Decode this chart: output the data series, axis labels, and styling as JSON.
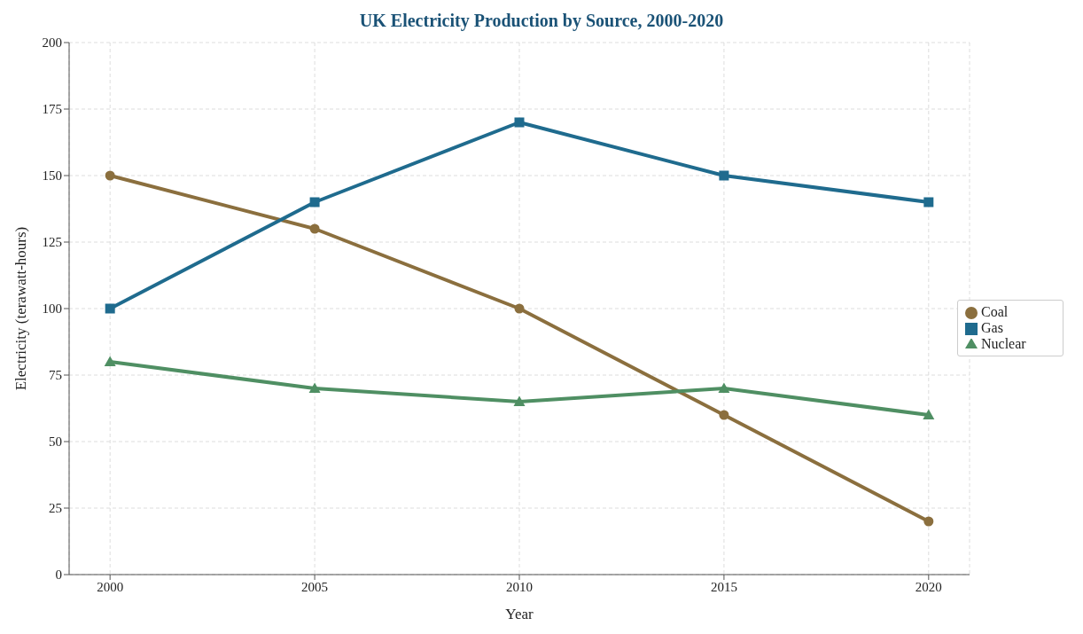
{
  "chart_data": {
    "type": "line",
    "title": "UK Electricity Production by Source, 2000-2020",
    "xlabel": "Year",
    "ylabel": "Electricity (terawatt-hours)",
    "x": [
      2000,
      2005,
      2010,
      2015,
      2020
    ],
    "series": [
      {
        "name": "Coal",
        "color": "#8b6f3e",
        "marker": "circle",
        "values": [
          150,
          130,
          100,
          60,
          20
        ]
      },
      {
        "name": "Gas",
        "color": "#1f6b8e",
        "marker": "square",
        "values": [
          100,
          140,
          170,
          150,
          140
        ]
      },
      {
        "name": "Nuclear",
        "color": "#4f8f63",
        "marker": "triangle",
        "values": [
          80,
          70,
          65,
          70,
          60
        ]
      }
    ],
    "xlim": [
      1999,
      2021
    ],
    "xticks": [
      2000,
      2005,
      2010,
      2015,
      2020
    ],
    "ylim": [
      0,
      200
    ],
    "yticks": [
      0,
      25,
      50,
      75,
      100,
      125,
      150,
      175,
      200
    ],
    "grid": true,
    "legend": "right",
    "line_style": "solid"
  }
}
